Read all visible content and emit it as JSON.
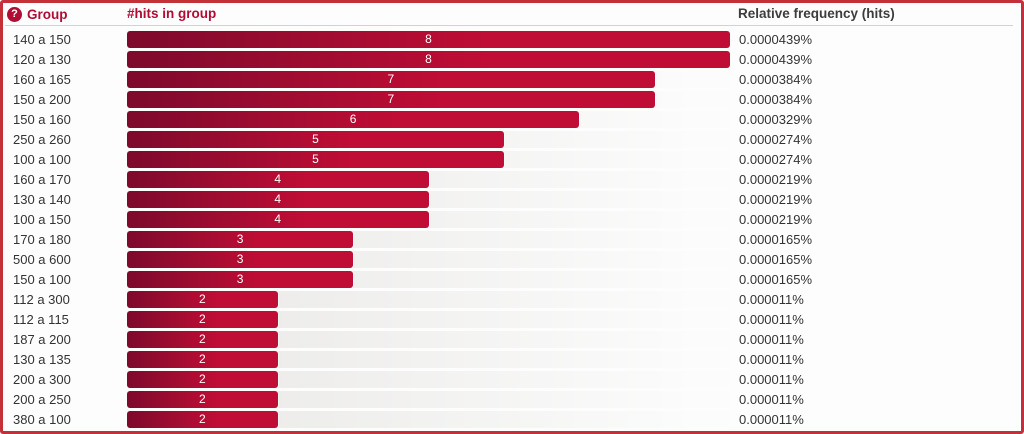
{
  "header": {
    "help_icon": "?",
    "group_label": "Group",
    "hits_label": "#hits in group",
    "freq_label": "Relative frequency (hits)"
  },
  "colors": {
    "accent_red": "#b00c34",
    "border_red": "#c4303a",
    "bar_gradient_start": "#7d0a2c",
    "bar_gradient_end": "#c00d35",
    "track_gradient_start": "#e8e7e5",
    "track_gradient_end": "#fcfcfc",
    "text": "#333333"
  },
  "rows": [
    {
      "group": "140 a 150",
      "hits": 8,
      "freq": "0.0000439%"
    },
    {
      "group": "120 a 130",
      "hits": 8,
      "freq": "0.0000439%"
    },
    {
      "group": "160 a 165",
      "hits": 7,
      "freq": "0.0000384%"
    },
    {
      "group": "150 a 200",
      "hits": 7,
      "freq": "0.0000384%"
    },
    {
      "group": "150 a 160",
      "hits": 6,
      "freq": "0.0000329%"
    },
    {
      "group": "250 a 260",
      "hits": 5,
      "freq": "0.0000274%"
    },
    {
      "group": "100 a 100",
      "hits": 5,
      "freq": "0.0000274%"
    },
    {
      "group": "160 a 170",
      "hits": 4,
      "freq": "0.0000219%"
    },
    {
      "group": "130 a 140",
      "hits": 4,
      "freq": "0.0000219%"
    },
    {
      "group": "100 a 150",
      "hits": 4,
      "freq": "0.0000219%"
    },
    {
      "group": "170 a 180",
      "hits": 3,
      "freq": "0.0000165%"
    },
    {
      "group": "500 a 600",
      "hits": 3,
      "freq": "0.0000165%"
    },
    {
      "group": "150 a 100",
      "hits": 3,
      "freq": "0.0000165%"
    },
    {
      "group": "112 a 300",
      "hits": 2,
      "freq": "0.000011%"
    },
    {
      "group": "112 a 115",
      "hits": 2,
      "freq": "0.000011%"
    },
    {
      "group": "187 a 200",
      "hits": 2,
      "freq": "0.000011%"
    },
    {
      "group": "130 a 135",
      "hits": 2,
      "freq": "0.000011%"
    },
    {
      "group": "200 a 300",
      "hits": 2,
      "freq": "0.000011%"
    },
    {
      "group": "200 a 250",
      "hits": 2,
      "freq": "0.000011%"
    },
    {
      "group": "380 a 100",
      "hits": 2,
      "freq": "0.000011%"
    }
  ],
  "chart_data": {
    "type": "bar",
    "orientation": "horizontal",
    "title": "",
    "xlabel": "#hits in group",
    "ylabel": "Group",
    "xlim": [
      0,
      8
    ],
    "grid": false,
    "legend": false,
    "categories": [
      "140 a 150",
      "120 a 130",
      "160 a 165",
      "150 a 200",
      "150 a 160",
      "250 a 260",
      "100 a 100",
      "160 a 170",
      "130 a 140",
      "100 a 150",
      "170 a 180",
      "500 a 600",
      "150 a 100",
      "112 a 300",
      "112 a 115",
      "187 a 200",
      "130 a 135",
      "200 a 300",
      "200 a 250",
      "380 a 100"
    ],
    "values": [
      8,
      8,
      7,
      7,
      6,
      5,
      5,
      4,
      4,
      4,
      3,
      3,
      3,
      2,
      2,
      2,
      2,
      2,
      2,
      2
    ],
    "relative_frequencies": [
      "0.0000439%",
      "0.0000439%",
      "0.0000384%",
      "0.0000384%",
      "0.0000329%",
      "0.0000274%",
      "0.0000274%",
      "0.0000219%",
      "0.0000219%",
      "0.0000219%",
      "0.0000165%",
      "0.0000165%",
      "0.0000165%",
      "0.000011%",
      "0.000011%",
      "0.000011%",
      "0.000011%",
      "0.000011%",
      "0.000011%",
      "0.000011%"
    ]
  }
}
